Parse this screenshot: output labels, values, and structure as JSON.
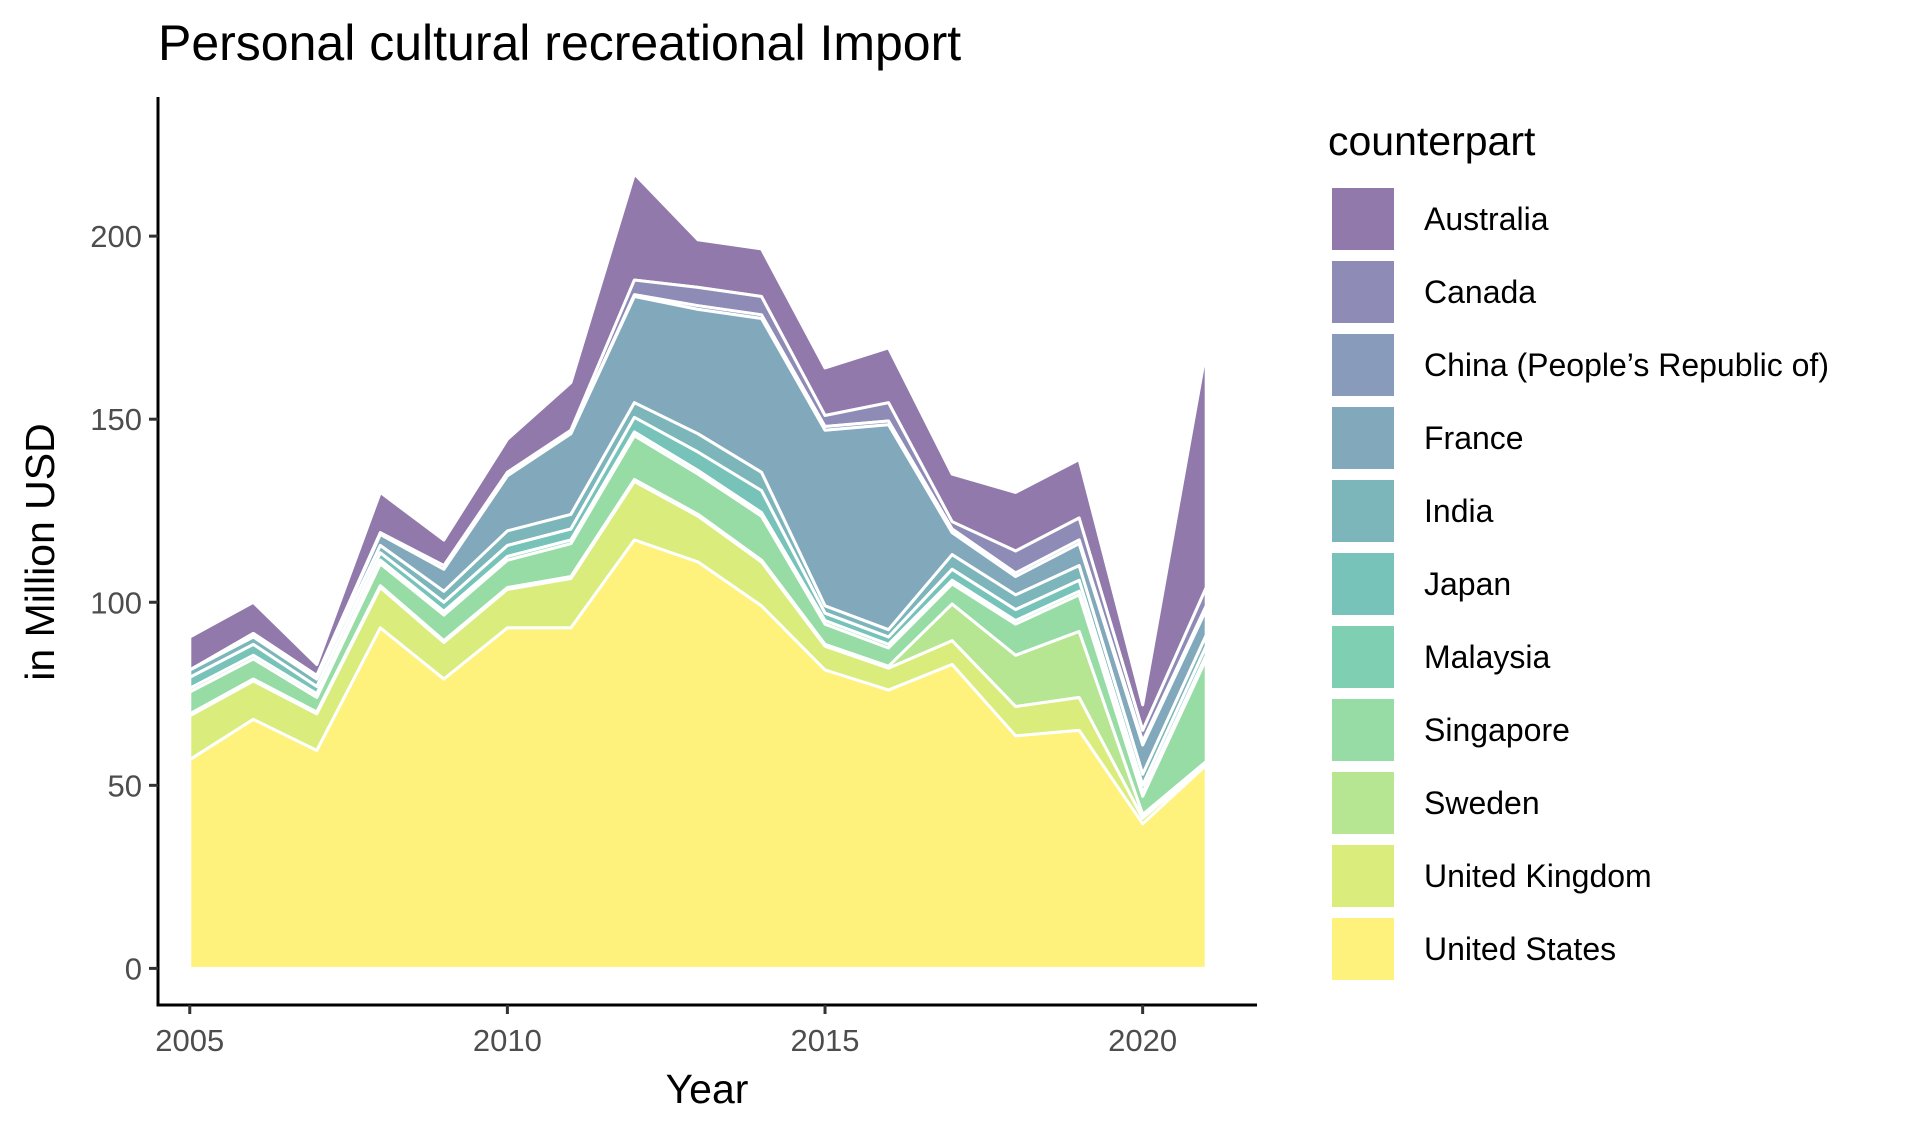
{
  "chart_data": {
    "type": "area",
    "stacked": true,
    "title": "Personal cultural recreational Import",
    "xlabel": "Year",
    "ylabel": "in Million USD",
    "xlim": [
      2004.5,
      2021.8
    ],
    "ylim": [
      -10,
      238
    ],
    "x_ticks": [
      2005,
      2010,
      2015,
      2020
    ],
    "y_ticks": [
      0,
      50,
      100,
      150,
      200
    ],
    "grid": false,
    "legend": {
      "title": "counterpart",
      "position": "right"
    },
    "x": [
      2005,
      2006,
      2007,
      2008,
      2009,
      2010,
      2011,
      2012,
      2013,
      2014,
      2015,
      2016,
      2017,
      2018,
      2019,
      2020,
      2021
    ],
    "series": [
      {
        "name": "United States",
        "color": "#FDE725",
        "values": [
          57,
          68,
          59.5,
          93,
          79,
          93,
          93,
          117,
          111,
          99,
          81.5,
          76,
          83,
          63.5,
          65,
          39.5,
          55.5
        ]
      },
      {
        "name": "United Kingdom",
        "color": "#C2DF23",
        "values": [
          12,
          10.5,
          10,
          11,
          10,
          10.5,
          13.5,
          16,
          12.5,
          12,
          6.5,
          6,
          6.5,
          8,
          9,
          1.5,
          0.5
        ]
      },
      {
        "name": "Sweden",
        "color": "#86D549",
        "values": [
          0.5,
          0.5,
          0.5,
          0.5,
          0.5,
          0.5,
          0.5,
          0.5,
          0.5,
          0.5,
          0.5,
          0.5,
          10,
          14,
          18,
          1,
          0.5
        ]
      },
      {
        "name": "Singapore",
        "color": "#52C569",
        "values": [
          6,
          5.5,
          4,
          6,
          7,
          7.5,
          9,
          12,
          11,
          12,
          5.5,
          5,
          5.5,
          8.5,
          10,
          5,
          28
        ]
      },
      {
        "name": "Malaysia",
        "color": "#2AB07F",
        "values": [
          1,
          1,
          1,
          1,
          1,
          1,
          1,
          1,
          1,
          1,
          1,
          1,
          1,
          1,
          1,
          1,
          1
        ]
      },
      {
        "name": "Japan",
        "color": "#1E9B8A",
        "values": [
          3,
          3,
          2,
          2,
          2.5,
          3,
          3,
          4,
          5,
          6,
          2,
          2,
          3,
          3,
          3,
          2,
          2.5
        ]
      },
      {
        "name": "India",
        "color": "#25858E",
        "values": [
          2,
          2,
          2,
          2,
          3,
          4,
          4,
          4,
          5,
          5,
          2,
          2,
          4,
          4,
          4,
          3,
          3
        ]
      },
      {
        "name": "France",
        "color": "#2D708E",
        "values": [
          0,
          0.5,
          0.5,
          3,
          6,
          15,
          22,
          29,
          34,
          42,
          48,
          56,
          6,
          5,
          6,
          8,
          7
        ]
      },
      {
        "name": "China (People’s Republic of)",
        "color": "#38588C",
        "values": [
          0,
          0,
          0,
          0,
          0,
          0,
          0,
          0.5,
          1,
          1,
          1,
          1,
          1,
          1,
          1,
          1,
          1
        ]
      },
      {
        "name": "Canada",
        "color": "#433E85",
        "values": [
          0,
          0.5,
          0.5,
          0.5,
          1,
          1,
          1,
          4,
          5,
          5,
          3,
          5,
          2,
          6,
          6,
          3,
          5
        ]
      },
      {
        "name": "Australia",
        "color": "#482173",
        "values": [
          9,
          8.5,
          3,
          11,
          7,
          9,
          13,
          29,
          13,
          13,
          13,
          15,
          13,
          16,
          16,
          7,
          65
        ]
      }
    ]
  }
}
